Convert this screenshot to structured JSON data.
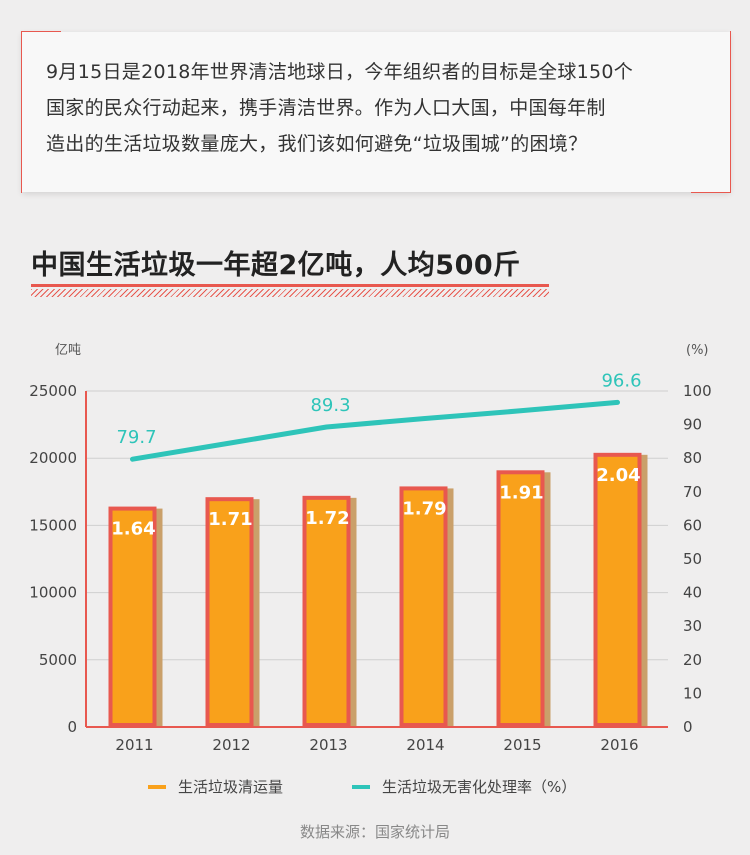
{
  "intro": {
    "lines": [
      "9月15日是2018年世界清洁地球日，今年组织者的目标是全球150个",
      "国家的民众行动起来，携手清洁世界。作为人口大国，中国每年制",
      "造出的生活垃圾数量庞大，我们该如何避免“垃圾围城”的困境？"
    ]
  },
  "headline": "中国生活垃圾一年超2亿吨，人均500斤",
  "legend": {
    "bar": "生活垃圾清运量",
    "line": "生活垃圾无害化处理率（%）"
  },
  "source": "数据来源：国家统计局",
  "colors": {
    "bar_fill": "#f9a11b",
    "bar_border": "#e8584f",
    "bar_shadow": "#caa06a",
    "line": "#2ec4b9",
    "axis_red": "#e8584f"
  },
  "chart_data": {
    "type": "bar",
    "categories": [
      "2011",
      "2012",
      "2013",
      "2014",
      "2015",
      "2016"
    ],
    "series": [
      {
        "name": "生活垃圾清运量",
        "type": "bar",
        "axis": "left",
        "values": [
          16400,
          17100,
          17200,
          17900,
          19100,
          20400
        ],
        "labels": [
          "1.64",
          "1.71",
          "1.72",
          "1.79",
          "1.91",
          "2.04"
        ]
      },
      {
        "name": "生活垃圾无害化处理率（%）",
        "type": "line",
        "axis": "right",
        "values": [
          79.7,
          84.5,
          89.3,
          91.8,
          94.1,
          96.6
        ],
        "labels": [
          "79.7",
          "",
          "89.3",
          "",
          "",
          "96.6"
        ]
      }
    ],
    "ylabel_left": "亿吨",
    "ylabel_right": "(%)",
    "ylim_left": [
      0,
      25000
    ],
    "ylim_right": [
      0,
      100
    ],
    "yticks_left": [
      "0",
      "5000",
      "10000",
      "15000",
      "20000",
      "25000"
    ],
    "yticks_right": [
      "0",
      "10",
      "20",
      "30",
      "40",
      "50",
      "60",
      "70",
      "80",
      "90",
      "100"
    ],
    "grid": true
  }
}
